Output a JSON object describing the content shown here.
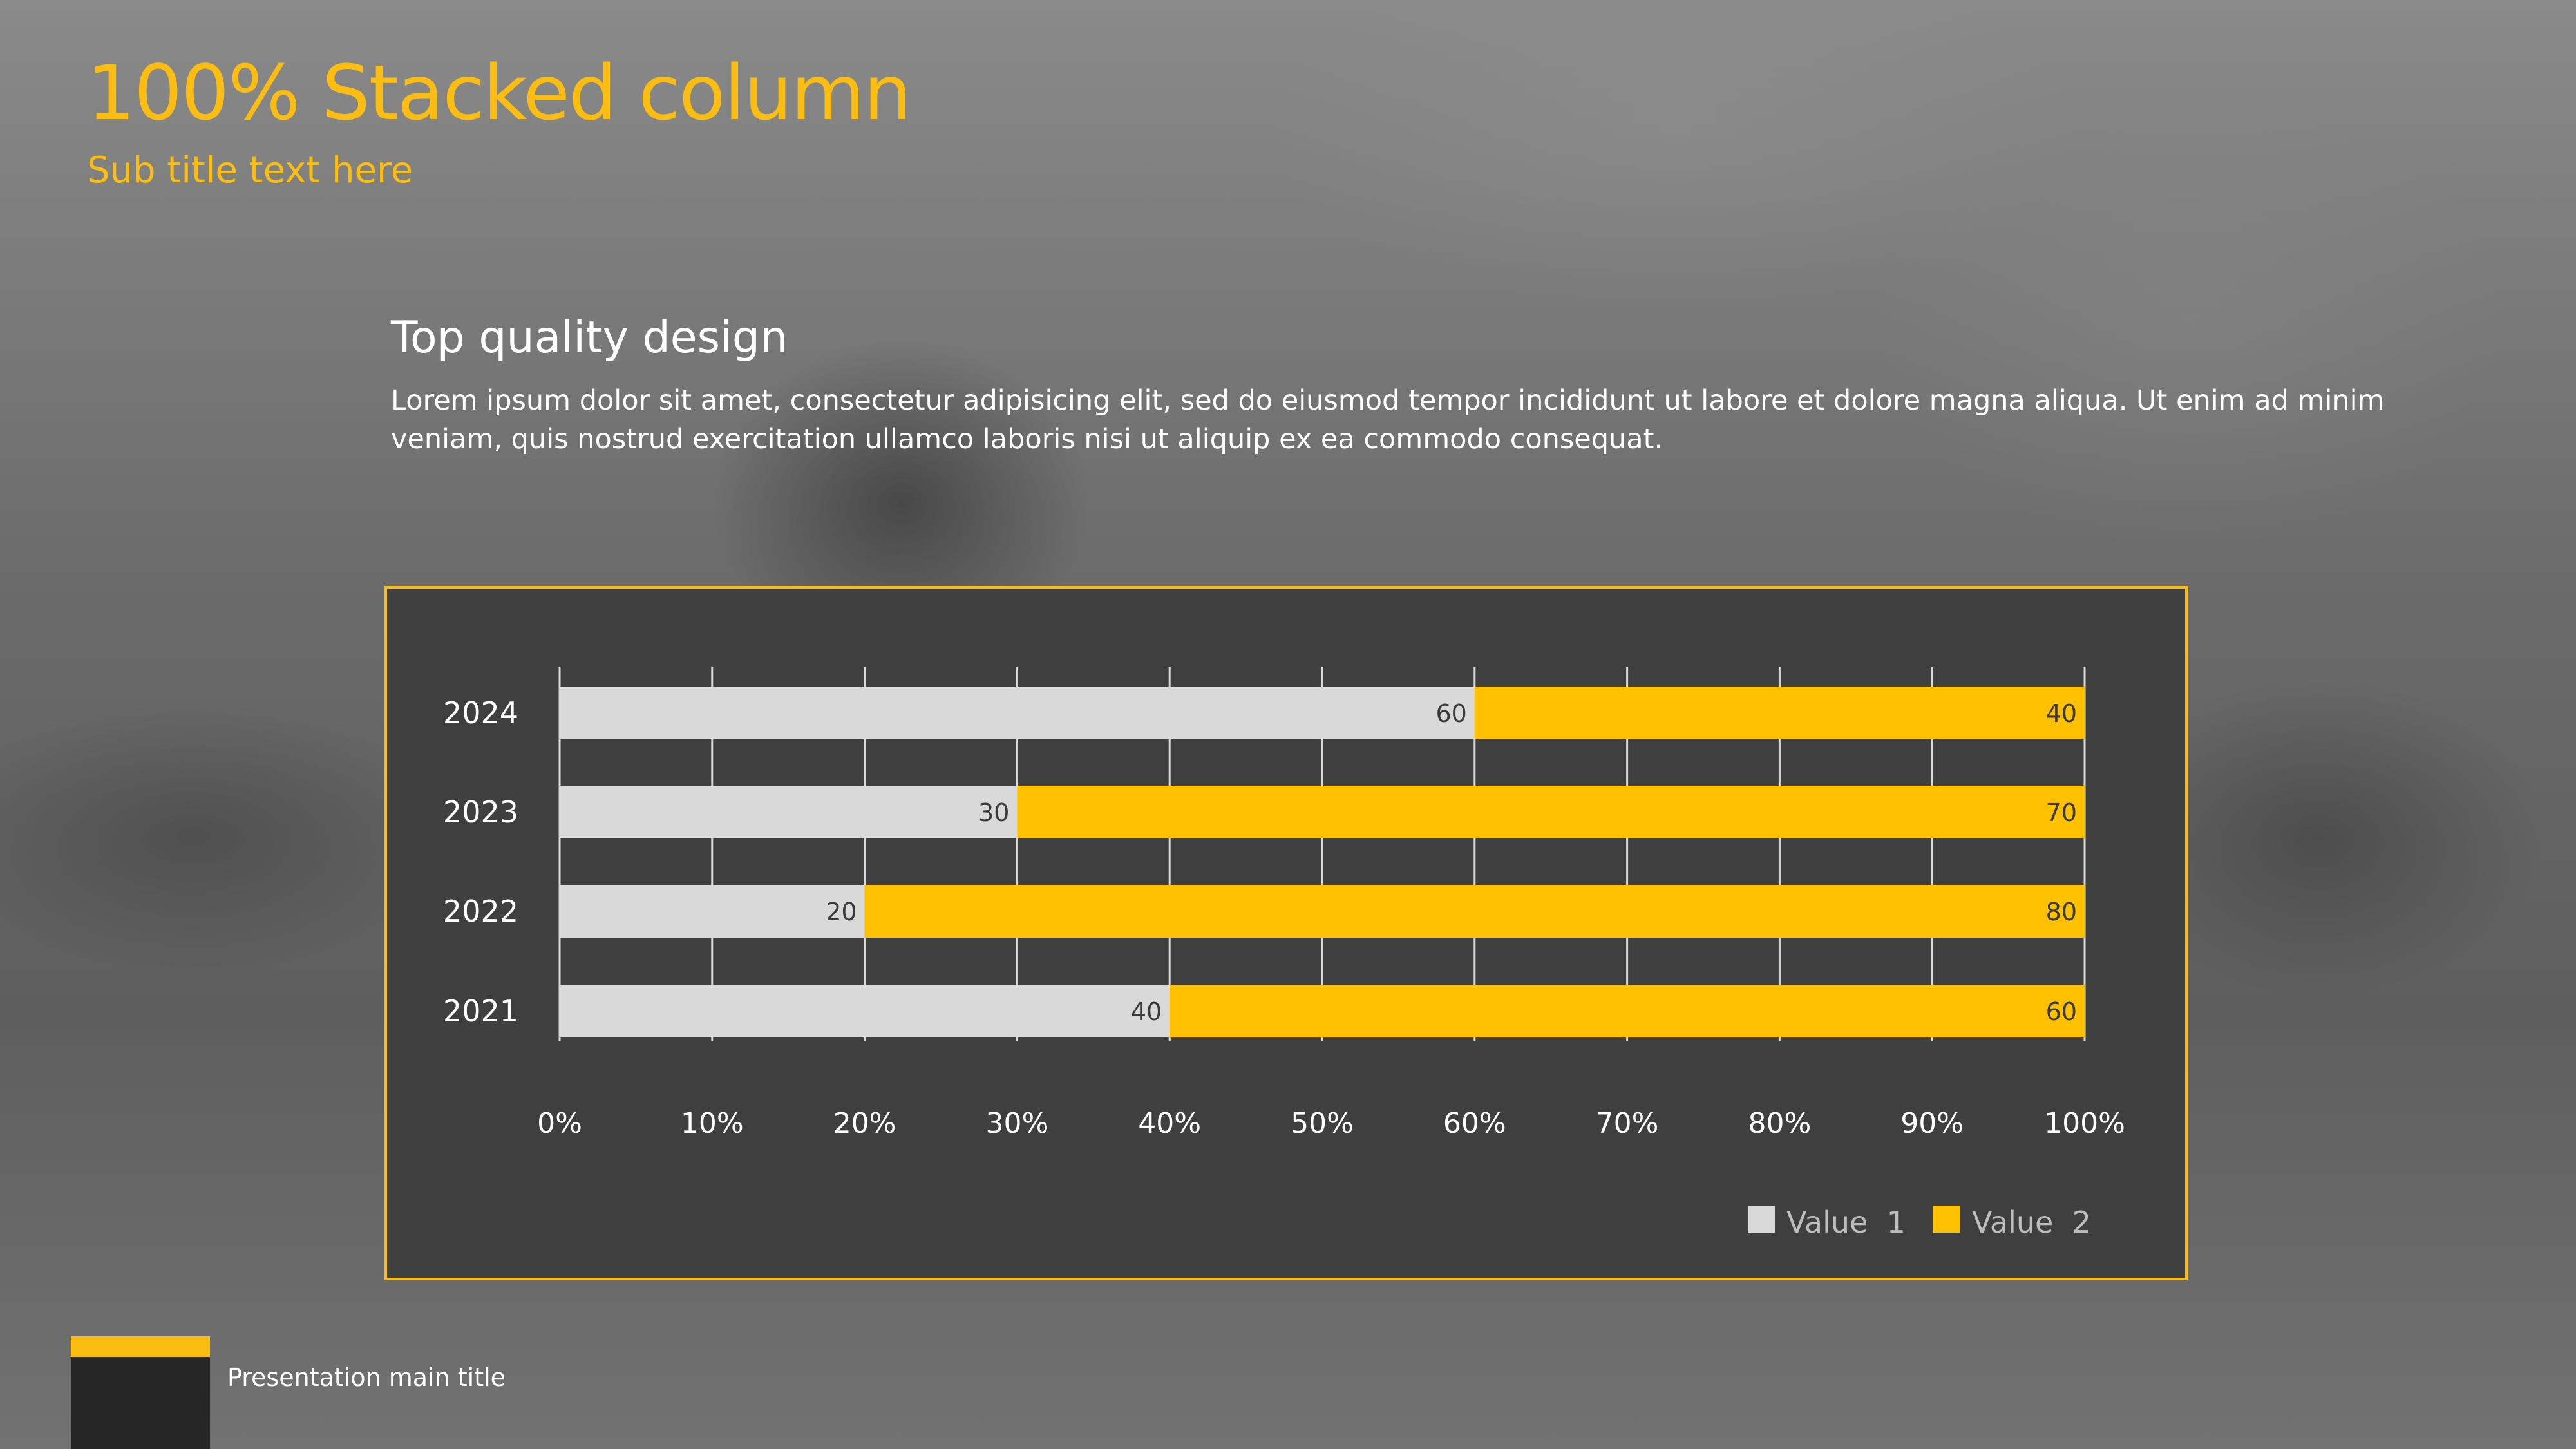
{
  "slide": {
    "title": "100% Stacked column",
    "subtitle": "Sub title text here",
    "section_heading": "Top quality design",
    "section_body": "Lorem ipsum dolor sit amet, consectetur adipisicing elit, sed do eiusmod tempor incididunt ut labore et dolore magna aliqua. Ut enim ad minim veniam, quis nostrud exercitation ullamco laboris nisi ut aliquip ex ea commodo consequat.",
    "footer_text": "Presentation main title"
  },
  "colors": {
    "accent": "#fbbd12",
    "series1": "#d9d9d9",
    "series2": "#ffc000",
    "panel": "#3f3f3f",
    "grid": "#d9d9d9"
  },
  "chart_data": {
    "type": "bar",
    "orientation": "horizontal",
    "stacking": "percent",
    "categories": [
      "2024",
      "2023",
      "2022",
      "2021"
    ],
    "series": [
      {
        "name": "Value  1",
        "values": [
          60,
          30,
          20,
          40
        ],
        "color": "#d9d9d9"
      },
      {
        "name": "Value  2",
        "values": [
          40,
          70,
          80,
          60
        ],
        "color": "#ffc000"
      }
    ],
    "xlim": [
      0,
      100
    ],
    "x_ticks": [
      "0%",
      "10%",
      "20%",
      "30%",
      "40%",
      "50%",
      "60%",
      "70%",
      "80%",
      "90%",
      "100%"
    ],
    "grid": true,
    "legend": "bottom-right"
  }
}
